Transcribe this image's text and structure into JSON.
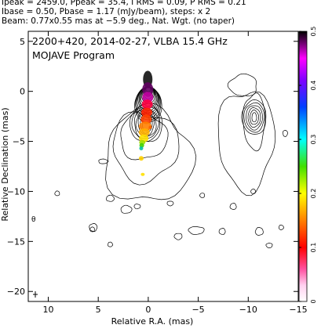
{
  "header": {
    "line1": "Ipeak = 2459.0, Ppeak = 35.4, I RMS = 0.09, P RMS = 0.21",
    "line2": "Ibase = 0.50, Pbase = 1.17 (mJy/beam), steps: x 2",
    "line3": "Beam: 0.77x0.55 mas at −5.9 deg., Nat. Wgt. (no taper)"
  },
  "plot": {
    "title_line1": "2200+420, 2014-02-27, VLBA 15.4 GHz",
    "title_line2": "MOJAVE Program"
  },
  "chart_data": {
    "type": "contour",
    "xlabel": "Relative R.A. (mas)",
    "ylabel": "Relative Declination (mas)",
    "xlim": [
      12,
      -15
    ],
    "ylim": [
      -21,
      6
    ],
    "x_ticks": [
      10,
      5,
      0,
      -5,
      -10,
      -15
    ],
    "y_ticks": [
      5,
      0,
      -5,
      -10,
      -15,
      -20
    ],
    "colorbar": {
      "range": [
        0,
        0.5
      ],
      "ticks": [
        0,
        0.1,
        0.2,
        0.3,
        0.4,
        0.5
      ],
      "colors": [
        "#ffffff",
        "#ff00ff",
        "#ff0000",
        "#ff8000",
        "#ffff00",
        "#00cc00",
        "#00ffff",
        "#0000ff",
        "#8000ff",
        "#000000"
      ]
    },
    "total_intensity": {
      "peak_mJy_per_beam": 2459.0,
      "rms": 0.09,
      "base": 0.5,
      "contour_step_factor": 2
    },
    "polarized_intensity": {
      "peak_mJy_per_beam": 35.4,
      "rms": 0.21,
      "base": 1.17
    },
    "core": {
      "x": 0,
      "y": 0
    },
    "jet_direction": "south",
    "beam": {
      "major_mas": 0.77,
      "minor_mas": 0.55,
      "pa_deg": -5.9
    }
  }
}
